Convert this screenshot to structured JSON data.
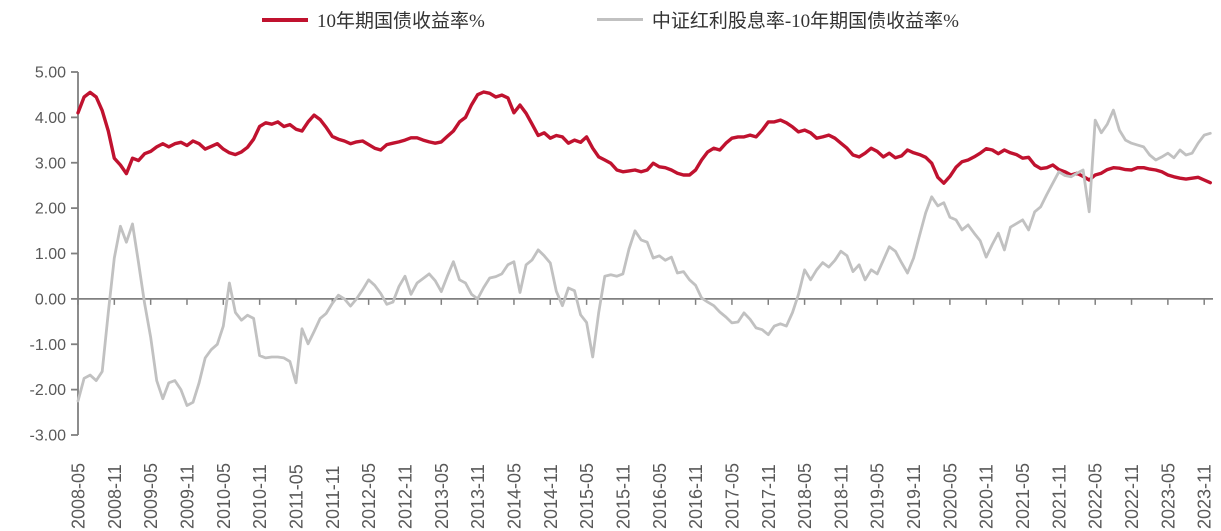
{
  "chart_data": {
    "type": "line",
    "title": "",
    "legend_position": "top-center",
    "grid": false,
    "x_start": "2008-05",
    "x_frequency": "monthly",
    "x_tick_labels": [
      "2008-05",
      "2008-11",
      "2009-05",
      "2009-11",
      "2010-05",
      "2010-11",
      "2011-05",
      "2011-11",
      "2012-05",
      "2012-11",
      "2013-05",
      "2013-11",
      "2014-05",
      "2014-11",
      "2015-05",
      "2015-11",
      "2016-05",
      "2016-11",
      "2017-05",
      "2017-11",
      "2018-05",
      "2018-11",
      "2019-05",
      "2019-11",
      "2020-05",
      "2020-11",
      "2021-05",
      "2021-11",
      "2022-05",
      "2022-11",
      "2023-05",
      "2023-11"
    ],
    "y_tick_labels": [
      "5.00",
      "4.00",
      "3.00",
      "2.00",
      "1.00",
      "0.00",
      "-1.00",
      "-2.00",
      "-3.00"
    ],
    "ylim": [
      -3,
      5
    ],
    "series": [
      {
        "name": "10年期国债收益率%",
        "color": "#c0122f",
        "values": [
          4.1,
          4.45,
          4.55,
          4.45,
          4.15,
          3.7,
          3.1,
          2.95,
          2.76,
          3.1,
          3.05,
          3.2,
          3.25,
          3.35,
          3.42,
          3.35,
          3.42,
          3.45,
          3.38,
          3.48,
          3.42,
          3.3,
          3.36,
          3.42,
          3.3,
          3.22,
          3.18,
          3.24,
          3.34,
          3.52,
          3.8,
          3.88,
          3.85,
          3.9,
          3.8,
          3.84,
          3.74,
          3.7,
          3.9,
          4.05,
          3.95,
          3.78,
          3.58,
          3.52,
          3.48,
          3.42,
          3.46,
          3.48,
          3.4,
          3.32,
          3.28,
          3.4,
          3.43,
          3.46,
          3.5,
          3.55,
          3.55,
          3.5,
          3.46,
          3.43,
          3.46,
          3.58,
          3.7,
          3.9,
          4.0,
          4.28,
          4.5,
          4.56,
          4.53,
          4.45,
          4.49,
          4.43,
          4.1,
          4.27,
          4.09,
          3.85,
          3.6,
          3.66,
          3.54,
          3.6,
          3.57,
          3.43,
          3.5,
          3.45,
          3.57,
          3.32,
          3.13,
          3.06,
          2.99,
          2.84,
          2.8,
          2.82,
          2.84,
          2.8,
          2.84,
          2.99,
          2.91,
          2.89,
          2.84,
          2.77,
          2.73,
          2.73,
          2.84,
          3.06,
          3.24,
          3.32,
          3.28,
          3.43,
          3.54,
          3.57,
          3.57,
          3.61,
          3.57,
          3.72,
          3.9,
          3.9,
          3.94,
          3.88,
          3.79,
          3.68,
          3.72,
          3.66,
          3.54,
          3.57,
          3.61,
          3.54,
          3.43,
          3.32,
          3.17,
          3.13,
          3.21,
          3.32,
          3.25,
          3.13,
          3.21,
          3.11,
          3.15,
          3.28,
          3.22,
          3.18,
          3.12,
          2.99,
          2.68,
          2.55,
          2.7,
          2.9,
          3.02,
          3.06,
          3.13,
          3.21,
          3.31,
          3.28,
          3.2,
          3.28,
          3.22,
          3.18,
          3.1,
          3.12,
          2.95,
          2.87,
          2.89,
          2.95,
          2.85,
          2.8,
          2.73,
          2.77,
          2.7,
          2.62,
          2.73,
          2.77,
          2.85,
          2.89,
          2.88,
          2.85,
          2.84,
          2.89,
          2.89,
          2.86,
          2.84,
          2.8,
          2.73,
          2.69,
          2.66,
          2.64,
          2.66,
          2.68,
          2.62,
          2.56
        ]
      },
      {
        "name": "中证红利股息率-10年期国债收益率%",
        "color": "#c1c1c1",
        "values": [
          -2.25,
          -1.75,
          -1.68,
          -1.8,
          -1.6,
          -0.3,
          0.9,
          1.6,
          1.25,
          1.65,
          0.8,
          -0.1,
          -0.85,
          -1.8,
          -2.2,
          -1.85,
          -1.8,
          -2.0,
          -2.35,
          -2.28,
          -1.85,
          -1.3,
          -1.12,
          -1.0,
          -0.6,
          0.35,
          -0.3,
          -0.47,
          -0.36,
          -0.43,
          -1.25,
          -1.3,
          -1.28,
          -1.28,
          -1.3,
          -1.38,
          -1.85,
          -0.66,
          -0.99,
          -0.72,
          -0.43,
          -0.32,
          -0.1,
          0.08,
          0.0,
          -0.16,
          0.0,
          0.2,
          0.42,
          0.3,
          0.12,
          -0.12,
          -0.07,
          0.27,
          0.5,
          0.1,
          0.35,
          0.45,
          0.55,
          0.4,
          0.16,
          0.5,
          0.82,
          0.42,
          0.35,
          0.1,
          0.0,
          0.25,
          0.46,
          0.49,
          0.55,
          0.75,
          0.82,
          0.14,
          0.75,
          0.86,
          1.08,
          0.95,
          0.79,
          0.17,
          -0.15,
          0.24,
          0.18,
          -0.35,
          -0.52,
          -1.28,
          -0.3,
          0.5,
          0.53,
          0.5,
          0.55,
          1.1,
          1.5,
          1.3,
          1.25,
          0.9,
          0.95,
          0.85,
          0.92,
          0.57,
          0.6,
          0.42,
          0.3,
          0.02,
          -0.07,
          -0.15,
          -0.29,
          -0.4,
          -0.53,
          -0.51,
          -0.31,
          -0.45,
          -0.64,
          -0.68,
          -0.79,
          -0.6,
          -0.55,
          -0.6,
          -0.3,
          0.1,
          0.64,
          0.42,
          0.64,
          0.8,
          0.7,
          0.85,
          1.05,
          0.95,
          0.6,
          0.75,
          0.42,
          0.64,
          0.55,
          0.85,
          1.15,
          1.05,
          0.8,
          0.57,
          0.9,
          1.4,
          1.9,
          2.25,
          2.05,
          2.12,
          1.8,
          1.74,
          1.52,
          1.63,
          1.45,
          1.28,
          0.92,
          1.2,
          1.45,
          1.08,
          1.58,
          1.66,
          1.74,
          1.52,
          1.92,
          2.03,
          2.3,
          2.55,
          2.8,
          2.72,
          2.69,
          2.77,
          2.84,
          1.92,
          3.94,
          3.66,
          3.85,
          4.16,
          3.72,
          3.5,
          3.43,
          3.39,
          3.35,
          3.17,
          3.06,
          3.13,
          3.21,
          3.11,
          3.28,
          3.17,
          3.21,
          3.43,
          3.61,
          3.65
        ]
      }
    ]
  },
  "colors": {
    "axis": "#808080",
    "zero_line": "#808080",
    "tick_label": "#595959",
    "legend_text": "#333333",
    "background": "#ffffff"
  }
}
